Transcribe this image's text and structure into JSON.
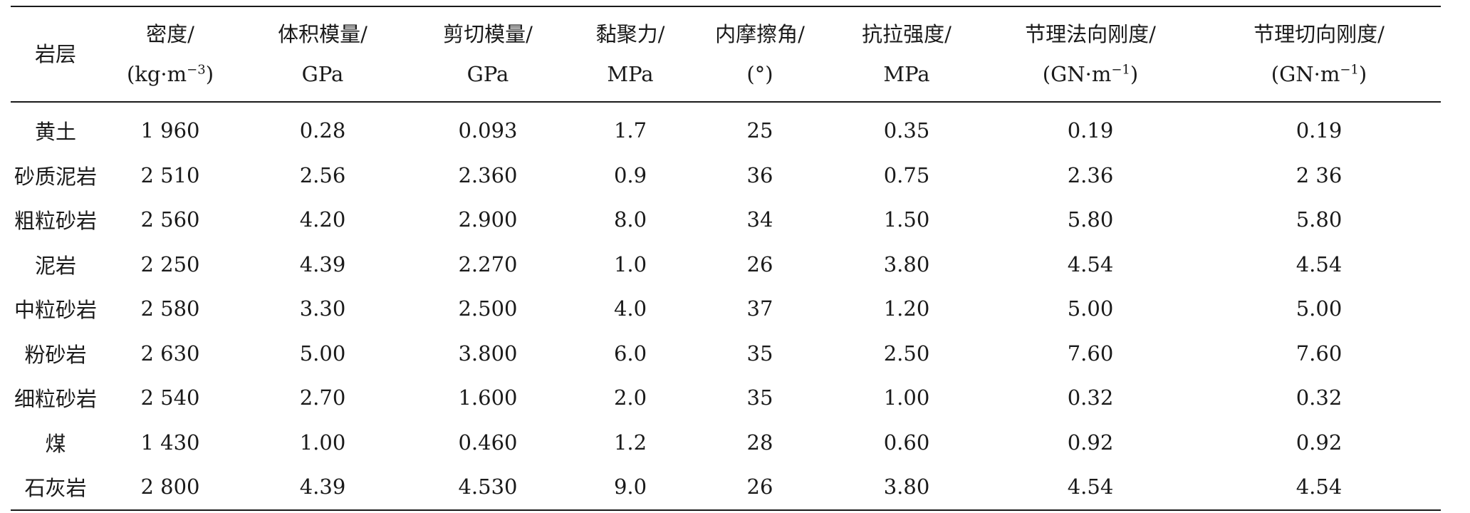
{
  "table": {
    "headers": [
      {
        "line1": "岩层",
        "line2": ""
      },
      {
        "line1": "密度/",
        "line2": "(kg·m",
        "sup": "−3",
        "tail": ")"
      },
      {
        "line1": "体积模量/",
        "line2": "GPa"
      },
      {
        "line1": "剪切模量/",
        "line2": "GPa"
      },
      {
        "line1": "黏聚力/",
        "line2": "MPa"
      },
      {
        "line1": "内摩擦角/",
        "line2": "(°)"
      },
      {
        "line1": "抗拉强度/",
        "line2": "MPa"
      },
      {
        "line1": "节理法向刚度/",
        "line2": "(GN·m",
        "sup": "−1",
        "tail": ")"
      },
      {
        "line1": "节理切向刚度/",
        "line2": "(GN·m",
        "sup": "−1",
        "tail": ")"
      }
    ],
    "rows": [
      [
        "黄土",
        "1 960",
        "0.28",
        "0.093",
        "1.7",
        "25",
        "0.35",
        "0.19",
        "0.19"
      ],
      [
        "砂质泥岩",
        "2 510",
        "2.56",
        "2.360",
        "0.9",
        "36",
        "0.75",
        "2.36",
        "2 36"
      ],
      [
        "粗粒砂岩",
        "2 560",
        "4.20",
        "2.900",
        "8.0",
        "34",
        "1.50",
        "5.80",
        "5.80"
      ],
      [
        "泥岩",
        "2 250",
        "4.39",
        "2.270",
        "1.0",
        "26",
        "3.80",
        "4.54",
        "4.54"
      ],
      [
        "中粒砂岩",
        "2 580",
        "3.30",
        "2.500",
        "4.0",
        "37",
        "1.20",
        "5.00",
        "5.00"
      ],
      [
        "粉砂岩",
        "2 630",
        "5.00",
        "3.800",
        "6.0",
        "35",
        "2.50",
        "7.60",
        "7.60"
      ],
      [
        "细粒砂岩",
        "2 540",
        "2.70",
        "1.600",
        "2.0",
        "35",
        "1.00",
        "0.32",
        "0.32"
      ],
      [
        "煤",
        "1 430",
        "1.00",
        "0.460",
        "1.2",
        "28",
        "0.60",
        "0.92",
        "0.92"
      ],
      [
        "石灰岩",
        "2 800",
        "4.39",
        "4.530",
        "9.0",
        "26",
        "3.80",
        "4.54",
        "4.54"
      ]
    ]
  }
}
